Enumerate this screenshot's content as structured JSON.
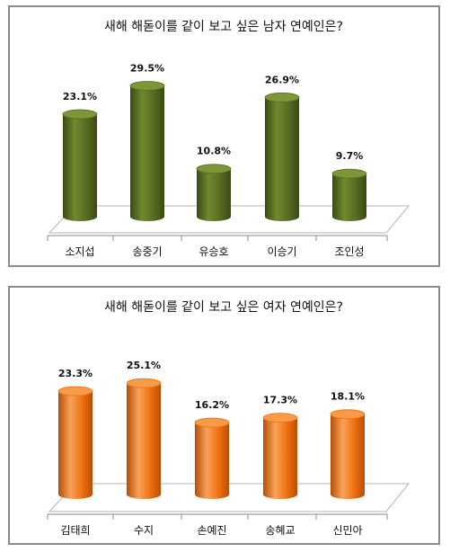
{
  "chart_data": [
    {
      "type": "bar",
      "title": "새해 해돋이를 같이 보고 싶은 남자 연예인은?",
      "categories": [
        "소지섭",
        "송중기",
        "유승호",
        "이승기",
        "조인성"
      ],
      "values": [
        23.1,
        29.5,
        10.8,
        26.9,
        9.7
      ],
      "data_labels": [
        "23.1%",
        "29.5%",
        "10.8%",
        "26.9%",
        "9.7%"
      ],
      "unit": "%",
      "ylim": [
        0,
        30
      ],
      "grid": false,
      "legend": "none",
      "colors": {
        "bar_side": "#556b22",
        "bar_top": "#7c9638",
        "bar_highlight": "#6f8a2e",
        "bar_shadow": "#3a4a14"
      }
    },
    {
      "type": "bar",
      "title": "새해 해돋이를 같이 보고 싶은 여자 연예인은?",
      "categories": [
        "김태희",
        "수지",
        "손예진",
        "송혜교",
        "신민아"
      ],
      "values": [
        23.3,
        25.1,
        16.2,
        17.3,
        18.1
      ],
      "data_labels": [
        "23.3%",
        "25.1%",
        "16.2%",
        "17.3%",
        "18.1%"
      ],
      "unit": "%",
      "ylim": [
        0,
        30
      ],
      "grid": false,
      "legend": "none",
      "colors": {
        "bar_side": "#f0700e",
        "bar_top": "#f79a4a",
        "bar_highlight": "#f8a25a",
        "bar_shadow": "#b84e05"
      }
    }
  ]
}
